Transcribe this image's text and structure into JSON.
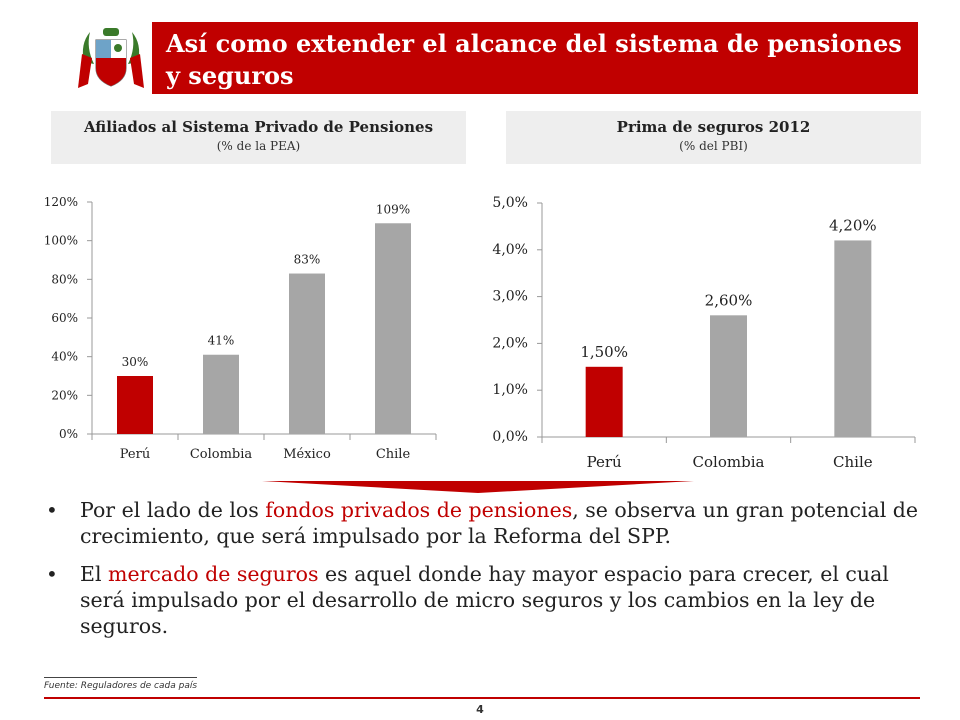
{
  "header": {
    "title": "Así como extender el alcance del sistema de pensiones y seguros",
    "logo_icon": "peru-coat-of-arms-icon"
  },
  "panels": [
    {
      "title": "Afiliados al Sistema Privado de Pensiones",
      "subtitle": "(% de la PEA)"
    },
    {
      "title": "Prima de seguros 2012",
      "subtitle": "(% del PBI)"
    }
  ],
  "chart_data": [
    {
      "type": "bar",
      "title": "Afiliados al Sistema Privado de Pensiones",
      "categories": [
        "Perú",
        "Colombia",
        "México",
        "Chile"
      ],
      "values": [
        30,
        41,
        83,
        109
      ],
      "data_labels": [
        "30%",
        "41%",
        "83%",
        "109%"
      ],
      "ylim": [
        0,
        120
      ],
      "yticks": [
        "0%",
        "20%",
        "40%",
        "60%",
        "80%",
        "100%",
        "120%"
      ],
      "bar_colors": [
        "#c00000",
        "#a6a6a6",
        "#a6a6a6",
        "#a6a6a6"
      ],
      "grid": false
    },
    {
      "type": "bar",
      "title": "Prima de seguros 2012",
      "categories": [
        "Perú",
        "Colombia",
        "Chile"
      ],
      "values": [
        1.5,
        2.6,
        4.2
      ],
      "data_labels": [
        "1,50%",
        "2,60%",
        "4,20%"
      ],
      "ylim": [
        0,
        5
      ],
      "yticks": [
        "0,0%",
        "1,0%",
        "2,0%",
        "3,0%",
        "4,0%",
        "5,0%"
      ],
      "bar_colors": [
        "#c00000",
        "#a6a6a6",
        "#a6a6a6"
      ],
      "grid": false
    }
  ],
  "bullets": [
    {
      "pre": "Por el lado de los ",
      "hl": "fondos privados de pensiones",
      "post": ", se observa un gran potencial de crecimiento, que será impulsado por la Reforma del SPP."
    },
    {
      "pre": "El ",
      "hl": "mercado de seguros",
      "post": " es aquel donde hay mayor espacio para crecer, el cual será impulsado por el desarrollo de micro seguros y los cambios en la ley de seguros."
    }
  ],
  "footer": {
    "source": "Fuente: Reguladores de cada país",
    "page_number": "4"
  },
  "colors": {
    "accent": "#c00000",
    "bar_gray": "#a6a6a6",
    "panel_bg": "#eeeeee"
  }
}
